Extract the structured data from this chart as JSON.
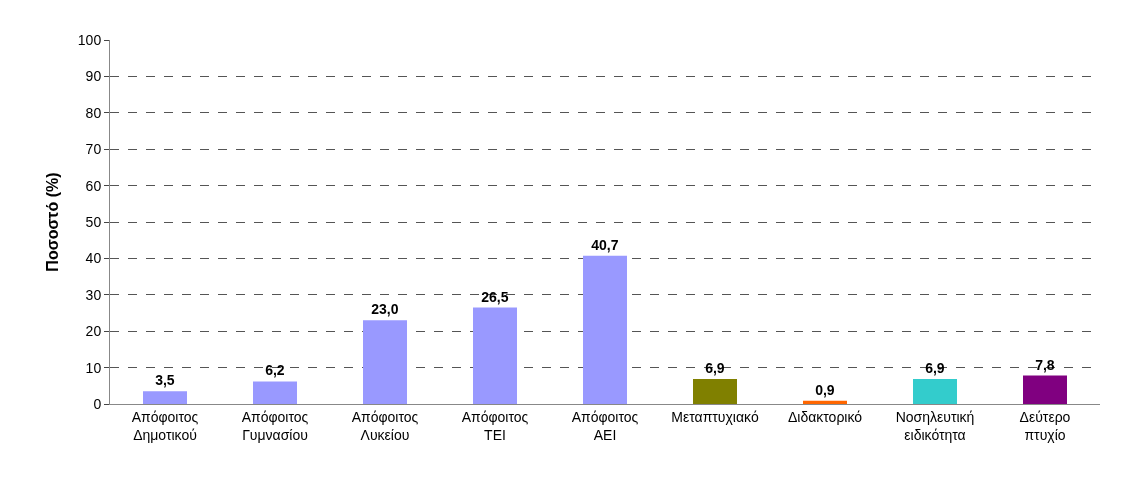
{
  "chart_data": {
    "type": "bar",
    "ylabel": "Ποσοστό (%)",
    "categories": [
      "Απόφοιτος Δημοτικού",
      "Απόφοιτος Γυμνασίου",
      "Απόφοιτος Λυκείου",
      "Απόφοιτος ΤΕΙ",
      "Απόφοιτος ΑΕΙ",
      "Μεταπτυχιακό",
      "Διδακτορικό",
      "Νοσηλευτική ειδικότητα",
      "Δεύτερο πτυχίο"
    ],
    "values": [
      3.5,
      6.2,
      23.0,
      26.5,
      40.7,
      6.9,
      0.9,
      6.9,
      7.8
    ],
    "value_labels": [
      "3,5",
      "6,2",
      "23,0",
      "26,5",
      "40,7",
      "6,9",
      "0,9",
      "6,9",
      "7,8"
    ],
    "colors": [
      "#9999ff",
      "#9999ff",
      "#9999ff",
      "#9999ff",
      "#9999ff",
      "#808000",
      "#ff6600",
      "#33cccc",
      "#800080"
    ],
    "ylim": [
      0,
      100
    ],
    "yticks": [
      0,
      10,
      20,
      30,
      40,
      50,
      60,
      70,
      80,
      90,
      100
    ],
    "grid": "y"
  }
}
